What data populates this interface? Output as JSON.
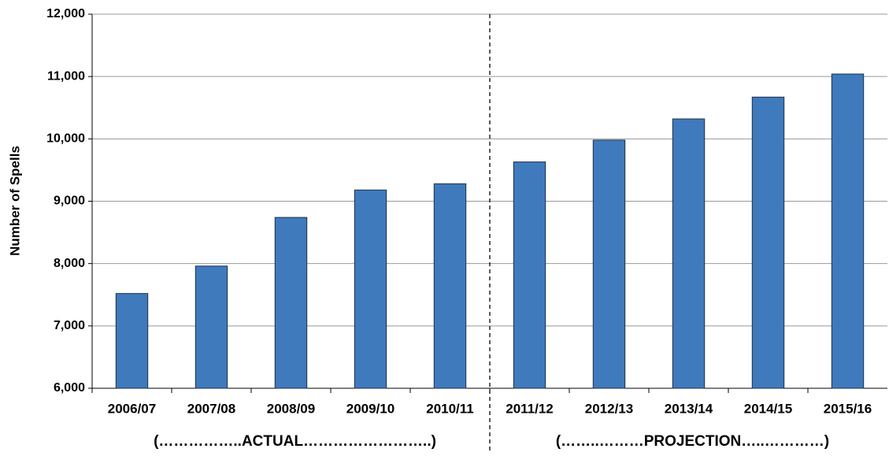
{
  "chart_data": {
    "type": "bar",
    "y_label": "Number of Spells",
    "categories": [
      "2006/07",
      "2007/08",
      "2008/09",
      "2009/10",
      "2010/11",
      "2011/12",
      "2012/13",
      "2013/14",
      "2014/15",
      "2015/16"
    ],
    "values": [
      7520,
      7960,
      8740,
      9180,
      9280,
      9630,
      9980,
      10320,
      10670,
      11040
    ],
    "color": "#3f7abd",
    "ylim": [
      6000,
      12000
    ],
    "yticks": [
      {
        "value": 6000,
        "label": "6,000"
      },
      {
        "value": 7000,
        "label": "7,000"
      },
      {
        "value": 8000,
        "label": "8,000"
      },
      {
        "value": 9000,
        "label": "9,000"
      },
      {
        "value": 10000,
        "label": "10,000"
      },
      {
        "value": 11000,
        "label": "11,000"
      },
      {
        "value": 12000,
        "label": "12,000"
      }
    ],
    "grid": true,
    "annotations": [
      "(……………..ACTUAL……………………..)",
      "(……..………PROJECTION…..…………)"
    ]
  }
}
